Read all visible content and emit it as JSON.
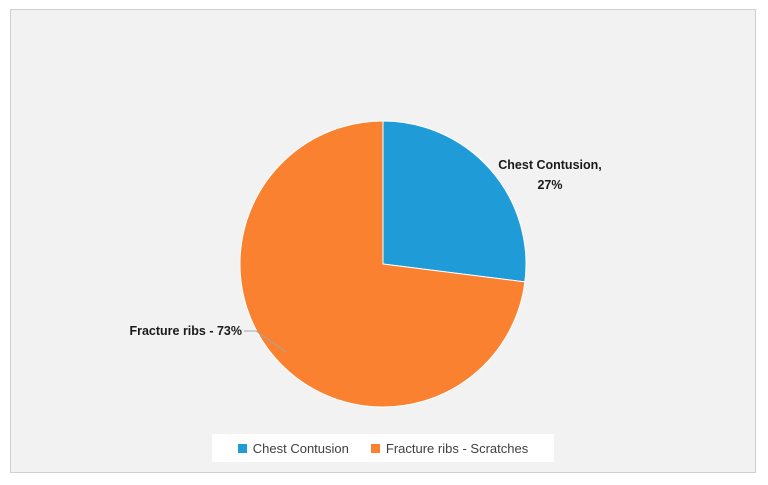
{
  "chart_data": {
    "type": "pie",
    "categories": [
      "Chest Contusion",
      "Fracture ribs - Scratches"
    ],
    "values": [
      27,
      73
    ],
    "value_unit": "%",
    "colors": [
      "#1f9bd7",
      "#f98130"
    ],
    "legend_position": "bottom",
    "data_labels": [
      {
        "line1": "Chest Contusion,",
        "line2": "27%"
      },
      {
        "line1": "Fracture ribs - 73%",
        "line2": ""
      }
    ],
    "legend": [
      "Chest Contusion",
      "Fracture ribs - Scratches"
    ]
  }
}
